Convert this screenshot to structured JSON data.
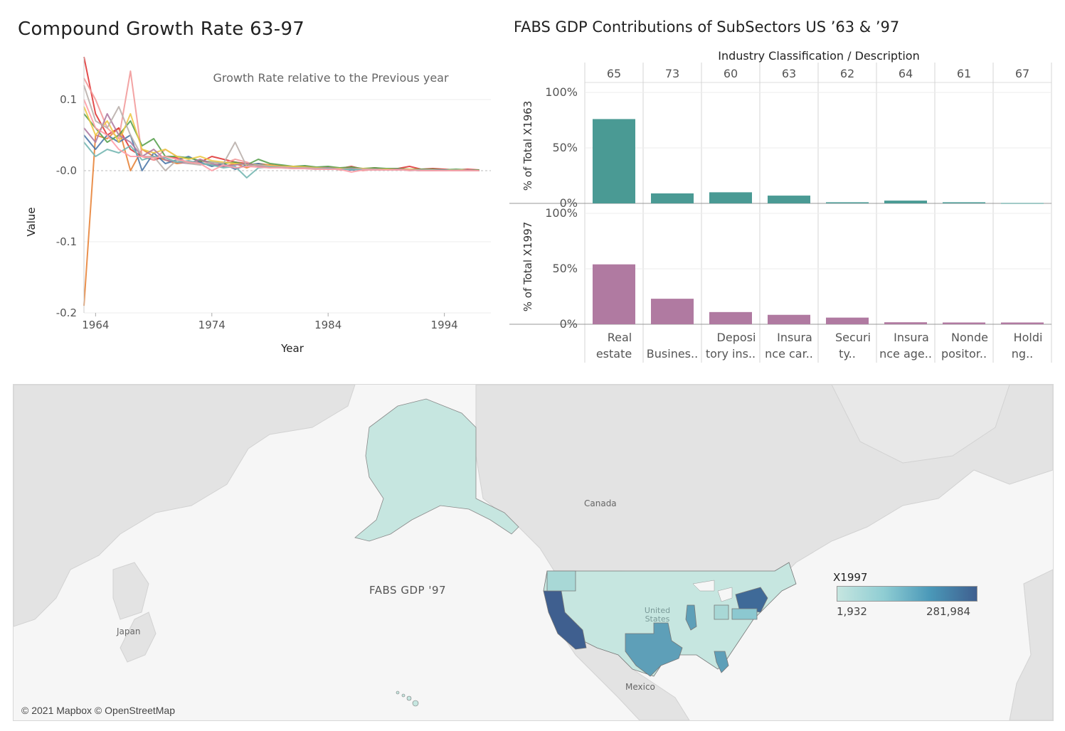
{
  "line_panel": {
    "title": "Compound Growth Rate 63-97",
    "annotation": "Growth Rate relative to the Previous year"
  },
  "bar_panel": {
    "title": "FABS GDP Contributions of SubSectors US ’63 & ’97",
    "header": "Industry Classification  /  Description"
  },
  "map_panel": {
    "label": "FABS GDP '97",
    "legend_title": "X1997",
    "legend_min": "1,932",
    "legend_max": "281,984",
    "copyright": "© 2021 Mapbox © OpenStreetMap",
    "place_labels": [
      "Canada",
      "Japan",
      "Mexico",
      "United States"
    ],
    "color_low": "#c6e6e0",
    "color_high": "#3f5f8f"
  },
  "chart_data": [
    {
      "type": "line",
      "title": "Compound Growth Rate 63-97",
      "xlabel": "Year",
      "ylabel": "Value",
      "xlim": [
        1963,
        1998
      ],
      "ylim": [
        -0.2,
        0.16
      ],
      "x_ticks": [
        "1964",
        "1974",
        "1984",
        "1994"
      ],
      "y_ticks": [
        "0.1",
        "-0.0",
        "-0.1",
        "-0.2"
      ],
      "y_tick_values": [
        0.1,
        0.0,
        -0.1,
        -0.2
      ],
      "x": [
        1963,
        1964,
        1965,
        1966,
        1967,
        1968,
        1969,
        1970,
        1971,
        1972,
        1973,
        1974,
        1975,
        1976,
        1977,
        1978,
        1979,
        1980,
        1981,
        1982,
        1983,
        1984,
        1985,
        1986,
        1987,
        1988,
        1989,
        1990,
        1991,
        1992,
        1993,
        1994,
        1995,
        1996,
        1997
      ],
      "series": [
        {
          "color": "#e8843a",
          "values": [
            -0.19,
            0.05,
            0.045,
            0.06,
            0.0,
            0.03,
            0.02,
            0.015,
            0.01,
            0.012,
            0.01,
            0.008,
            0.006,
            0.01,
            0.004,
            0.01,
            0.008,
            0.006,
            0.004,
            0.005,
            0.003,
            0.004,
            0.002,
            0.003,
            0.001,
            0.002,
            0.001,
            0.002,
            0.001,
            0.001,
            0.0,
            0.001,
            0.0,
            0.001,
            0.0
          ]
        },
        {
          "color": "#e03a3a",
          "values": [
            0.16,
            0.08,
            0.05,
            0.06,
            0.03,
            0.02,
            0.015,
            0.02,
            0.018,
            0.01,
            0.012,
            0.02,
            0.016,
            0.012,
            0.01,
            0.008,
            0.006,
            0.007,
            0.005,
            0.006,
            0.004,
            0.005,
            0.003,
            0.006,
            0.002,
            0.004,
            0.002,
            0.003,
            0.006,
            0.002,
            0.003,
            0.002,
            0.001,
            0.002,
            0.001
          ]
        },
        {
          "color": "#f29a9a",
          "values": [
            0.13,
            0.1,
            0.06,
            0.045,
            0.14,
            0.02,
            0.015,
            0.03,
            0.02,
            0.01,
            0.015,
            0.008,
            0.01,
            0.016,
            0.012,
            0.006,
            0.004,
            0.006,
            0.003,
            0.005,
            0.002,
            0.004,
            0.001,
            0.003,
            0.0,
            0.002,
            0.001,
            0.002,
            0.0,
            0.001,
            0.0,
            0.001,
            0.0,
            0.0,
            0.0
          ]
        },
        {
          "color": "#4c78a8",
          "values": [
            0.05,
            0.03,
            0.05,
            0.04,
            0.05,
            0.0,
            0.025,
            0.01,
            0.015,
            0.02,
            0.012,
            0.006,
            0.01,
            0.002,
            0.008,
            0.01,
            0.006,
            0.004,
            0.005,
            0.003,
            0.004,
            0.002,
            0.003,
            0.001,
            0.002,
            0.001,
            0.002,
            0.001,
            0.001,
            0.0,
            0.001,
            0.0,
            0.001,
            0.0,
            0.0
          ]
        },
        {
          "color": "#59a14f",
          "values": [
            0.08,
            0.06,
            0.04,
            0.05,
            0.07,
            0.035,
            0.045,
            0.02,
            0.02,
            0.018,
            0.014,
            0.012,
            0.01,
            0.012,
            0.008,
            0.016,
            0.01,
            0.008,
            0.006,
            0.007,
            0.005,
            0.006,
            0.004,
            0.005,
            0.003,
            0.004,
            0.003,
            0.003,
            0.002,
            0.002,
            0.002,
            0.001,
            0.002,
            0.001,
            0.001
          ]
        },
        {
          "color": "#edc948",
          "values": [
            0.09,
            0.05,
            0.07,
            0.04,
            0.08,
            0.03,
            0.025,
            0.03,
            0.02,
            0.016,
            0.02,
            0.014,
            0.012,
            0.01,
            0.009,
            0.008,
            0.007,
            0.006,
            0.006,
            0.005,
            0.004,
            0.004,
            0.003,
            0.003,
            0.003,
            0.002,
            0.002,
            0.002,
            0.002,
            0.001,
            0.001,
            0.001,
            0.001,
            0.001,
            0.0
          ]
        },
        {
          "color": "#b07aa1",
          "values": [
            0.06,
            0.04,
            0.08,
            0.05,
            0.04,
            0.02,
            0.03,
            0.015,
            0.012,
            0.01,
            0.016,
            0.01,
            0.006,
            0.008,
            0.01,
            0.006,
            0.005,
            0.005,
            0.004,
            0.004,
            0.003,
            0.004,
            0.002,
            0.003,
            0.002,
            0.002,
            0.001,
            0.002,
            0.001,
            0.001,
            0.001,
            0.001,
            0.0,
            0.001,
            0.0
          ]
        },
        {
          "color": "#bab0ac",
          "values": [
            0.12,
            0.07,
            0.06,
            0.09,
            0.05,
            0.02,
            0.02,
            0.0,
            0.015,
            0.01,
            0.008,
            0.012,
            0.01,
            0.04,
            0.006,
            0.008,
            0.006,
            0.005,
            0.004,
            0.004,
            0.003,
            0.003,
            0.002,
            0.002,
            0.002,
            0.002,
            0.001,
            0.001,
            0.001,
            0.001,
            0.001,
            0.0,
            0.001,
            0.0,
            0.0
          ]
        },
        {
          "color": "#76b7b2",
          "values": [
            0.04,
            0.02,
            0.03,
            0.025,
            0.035,
            0.015,
            0.02,
            0.018,
            0.012,
            0.014,
            0.01,
            0.008,
            0.004,
            0.006,
            -0.01,
            0.004,
            0.005,
            0.004,
            0.003,
            0.003,
            0.002,
            0.003,
            0.002,
            0.002,
            0.001,
            0.001,
            0.001,
            0.001,
            0.001,
            0.0,
            0.0,
            0.001,
            0.0,
            0.0,
            0.0
          ]
        },
        {
          "color": "#ff9da7",
          "values": [
            0.1,
            0.06,
            0.05,
            0.03,
            0.02,
            0.02,
            0.018,
            0.02,
            0.016,
            0.012,
            0.01,
            0.0,
            0.008,
            0.004,
            0.006,
            0.005,
            0.004,
            0.004,
            0.003,
            0.003,
            0.002,
            0.002,
            0.002,
            -0.002,
            0.001,
            0.001,
            0.001,
            0.001,
            0.001,
            0.0,
            0.0,
            0.0,
            0.0,
            0.0,
            0.0
          ]
        }
      ]
    },
    {
      "type": "bar",
      "title": "FABS GDP Contributions of SubSectors US ’63 & ’97",
      "xlabel": "Industry Classification  /  Description",
      "codes": [
        "65",
        "73",
        "60",
        "63",
        "62",
        "64",
        "61",
        "67"
      ],
      "categories": [
        [
          "Real",
          "estate"
        ],
        [
          "",
          "Busines.."
        ],
        [
          "Deposi",
          "tory ins.."
        ],
        [
          "Insura",
          "nce car.."
        ],
        [
          "Securi",
          "ty.."
        ],
        [
          "Insura",
          "nce age.."
        ],
        [
          "Nonde",
          "positor.."
        ],
        [
          "Holdi",
          "ng.."
        ]
      ],
      "ylim": [
        0,
        100
      ],
      "y_ticks": [
        "100%",
        "50%",
        "0%"
      ],
      "series": [
        {
          "name": "% of Total X1963",
          "color": "#4a9a94",
          "values": [
            76,
            9,
            10,
            7,
            1,
            2.5,
            1,
            0.3
          ]
        },
        {
          "name": "% of Total X1997",
          "color": "#b07aa1",
          "values": [
            54,
            23,
            11,
            8.5,
            6,
            1.8,
            1.6,
            1.6
          ]
        }
      ]
    }
  ]
}
